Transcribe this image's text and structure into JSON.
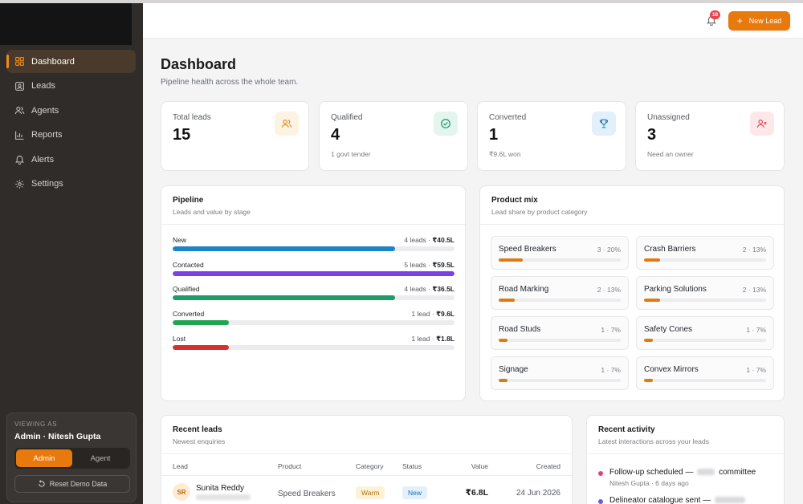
{
  "sidebar": {
    "nav": [
      {
        "label": "Dashboard",
        "icon": "grid-icon",
        "active": true
      },
      {
        "label": "Leads",
        "icon": "contact-card-icon"
      },
      {
        "label": "Agents",
        "icon": "users-icon"
      },
      {
        "label": "Reports",
        "icon": "bar-chart-icon"
      },
      {
        "label": "Alerts",
        "icon": "bell-icon"
      },
      {
        "label": "Settings",
        "icon": "gear-icon"
      }
    ],
    "viewing": {
      "label": "VIEWING AS",
      "name": "Admin · Nitesh Gupta",
      "roles": [
        "Admin",
        "Agent"
      ],
      "active_role": "Admin",
      "reset_label": "Reset Demo Data"
    }
  },
  "header": {
    "notifications": "18",
    "new_lead_label": "New Lead"
  },
  "page": {
    "title": "Dashboard",
    "subtitle": "Pipeline health across the whole team."
  },
  "stats": [
    {
      "label": "Total leads",
      "value": "15",
      "sub": "",
      "icon": "users-icon",
      "color": "#d98a1c"
    },
    {
      "label": "Qualified",
      "value": "4",
      "sub": "1 govt tender",
      "icon": "check-circle-icon",
      "color": "#1e9c6a"
    },
    {
      "label": "Converted",
      "value": "1",
      "sub": "₹9.6L won",
      "icon": "trophy-icon",
      "color": "#1d7fb8"
    },
    {
      "label": "Unassigned",
      "value": "3",
      "sub": "Need an owner",
      "icon": "user-x-icon",
      "color": "#d9464b"
    }
  ],
  "pipeline": {
    "title": "Pipeline",
    "subtitle": "Leads and value by stage",
    "stages": [
      {
        "name": "New",
        "count": "4 leads",
        "value": "₹40.5L",
        "fraction": 0.79,
        "color": "#1d83c8"
      },
      {
        "name": "Contacted",
        "count": "5 leads",
        "value": "₹59.5L",
        "fraction": 1.0,
        "color": "#7b3fe4"
      },
      {
        "name": "Qualified",
        "count": "4 leads",
        "value": "₹36.5L",
        "fraction": 0.79,
        "color": "#1e9c6a"
      },
      {
        "name": "Converted",
        "count": "1 lead",
        "value": "₹9.6L",
        "fraction": 0.2,
        "color": "#22a552"
      },
      {
        "name": "Lost",
        "count": "1 lead",
        "value": "₹1.8L",
        "fraction": 0.2,
        "color": "#d9302f"
      }
    ]
  },
  "product_mix": {
    "title": "Product mix",
    "subtitle": "Lead share by product category",
    "items": [
      {
        "name": "Speed Breakers",
        "stat": "3 · 20%",
        "fraction": 0.2
      },
      {
        "name": "Crash Barriers",
        "stat": "2 · 13%",
        "fraction": 0.13
      },
      {
        "name": "Road Marking",
        "stat": "2 · 13%",
        "fraction": 0.13
      },
      {
        "name": "Parking Solutions",
        "stat": "2 · 13%",
        "fraction": 0.13
      },
      {
        "name": "Road Studs",
        "stat": "1 · 7%",
        "fraction": 0.07
      },
      {
        "name": "Safety Cones",
        "stat": "1 · 7%",
        "fraction": 0.07
      },
      {
        "name": "Signage",
        "stat": "1 · 7%",
        "fraction": 0.07
      },
      {
        "name": "Convex Mirrors",
        "stat": "1 · 7%",
        "fraction": 0.07
      }
    ]
  },
  "recent_leads": {
    "title": "Recent leads",
    "subtitle": "Newest enquiries",
    "columns": [
      "Lead",
      "Product",
      "Category",
      "Status",
      "Value",
      "Created"
    ],
    "rows": [
      {
        "initials": "SR",
        "name": "Sunita Reddy",
        "product": "Speed Breakers",
        "category": "Warm",
        "status": "New",
        "value": "₹6.8L",
        "created": "24 Jun 2026"
      }
    ]
  },
  "activity": {
    "title": "Recent activity",
    "subtitle": "Latest interactions across your leads",
    "items": [
      {
        "text_before": "Follow-up scheduled —",
        "text_after": "committee",
        "meta": "Nitesh Gupta · 6 days ago",
        "color": "#d9467a"
      },
      {
        "text_before": "Delineator catalogue sent —",
        "text_after": "",
        "meta": "",
        "color": "#6a5ae0"
      }
    ]
  }
}
